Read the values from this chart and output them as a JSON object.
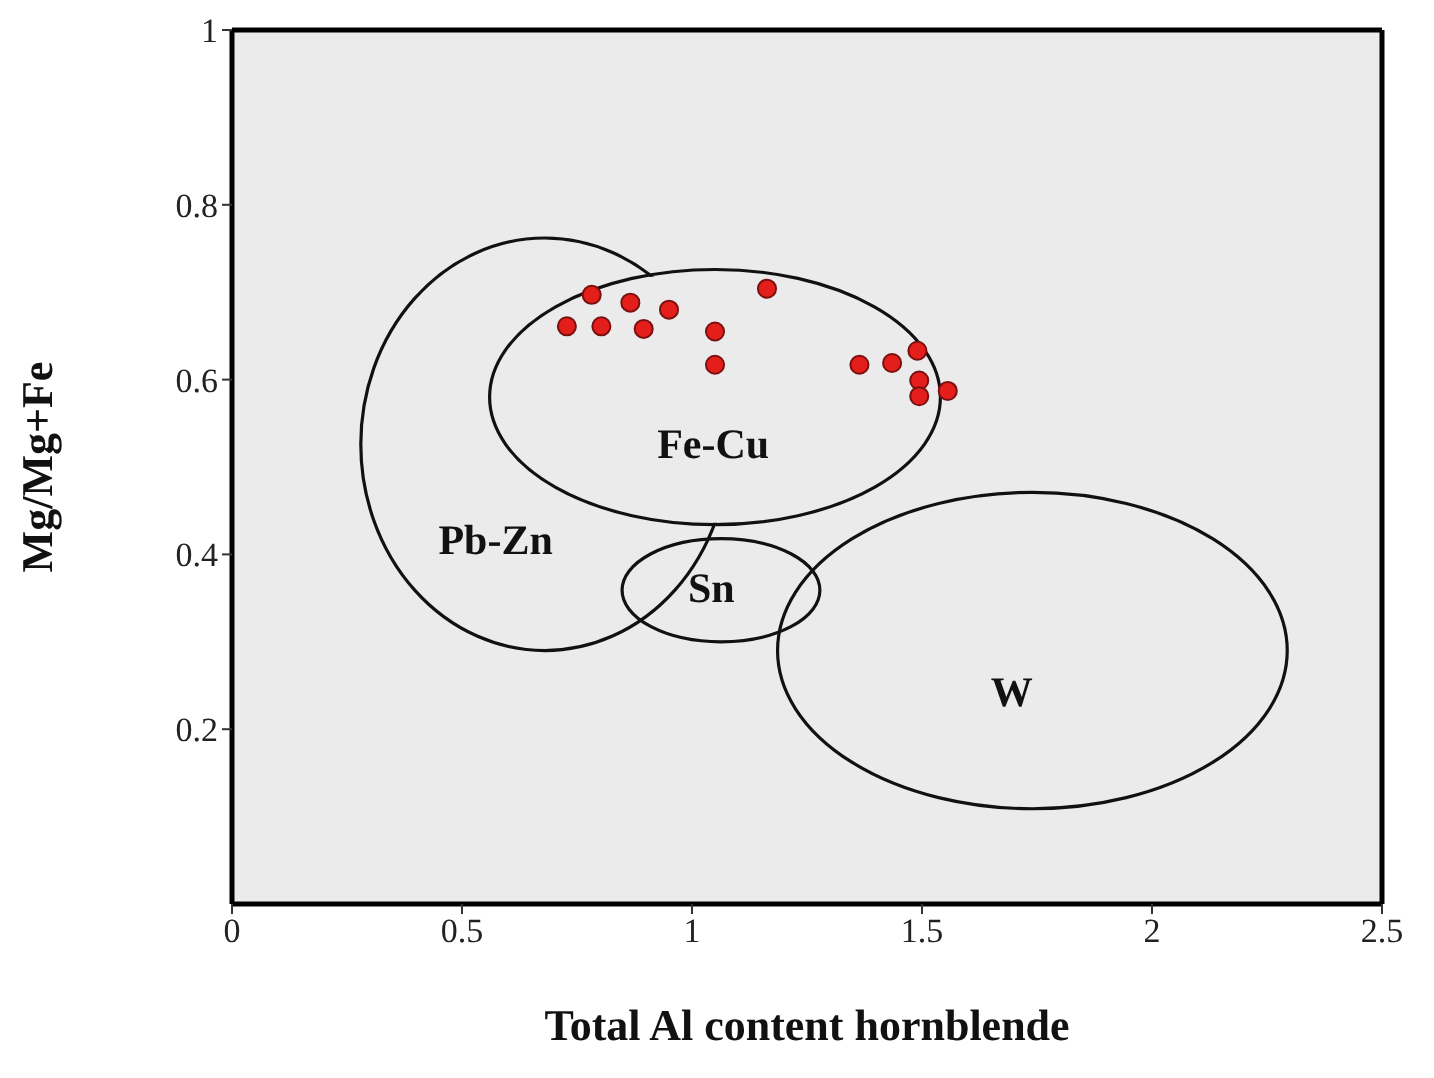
{
  "chart_data": {
    "type": "scatter",
    "xlabel": "Total Al content hornblende",
    "ylabel": "Mg/Mg+Fe",
    "xlim": [
      0,
      2.5
    ],
    "ylim": [
      0,
      1
    ],
    "xticks": [
      0,
      0.5,
      1,
      1.5,
      2,
      2.5
    ],
    "yticks": [
      0.2,
      0.4,
      0.6,
      0.8,
      1
    ],
    "grid": false,
    "marker": "circle",
    "series": [
      {
        "color": "#e41f1b",
        "x": [
          0.728,
          0.782,
          0.803,
          0.866,
          0.895,
          0.95,
          1.05,
          1.05,
          1.163,
          1.364,
          1.435,
          1.49,
          1.494,
          1.556,
          1.494
        ],
        "values": [
          0.661,
          0.697,
          0.661,
          0.688,
          0.658,
          0.68,
          0.655,
          0.617,
          0.704,
          0.617,
          0.619,
          0.633,
          0.599,
          0.587,
          0.581
        ]
      }
    ],
    "annotations": [
      "Fe-Cu",
      "Pb-Zn",
      "Sn",
      "W"
    ]
  }
}
